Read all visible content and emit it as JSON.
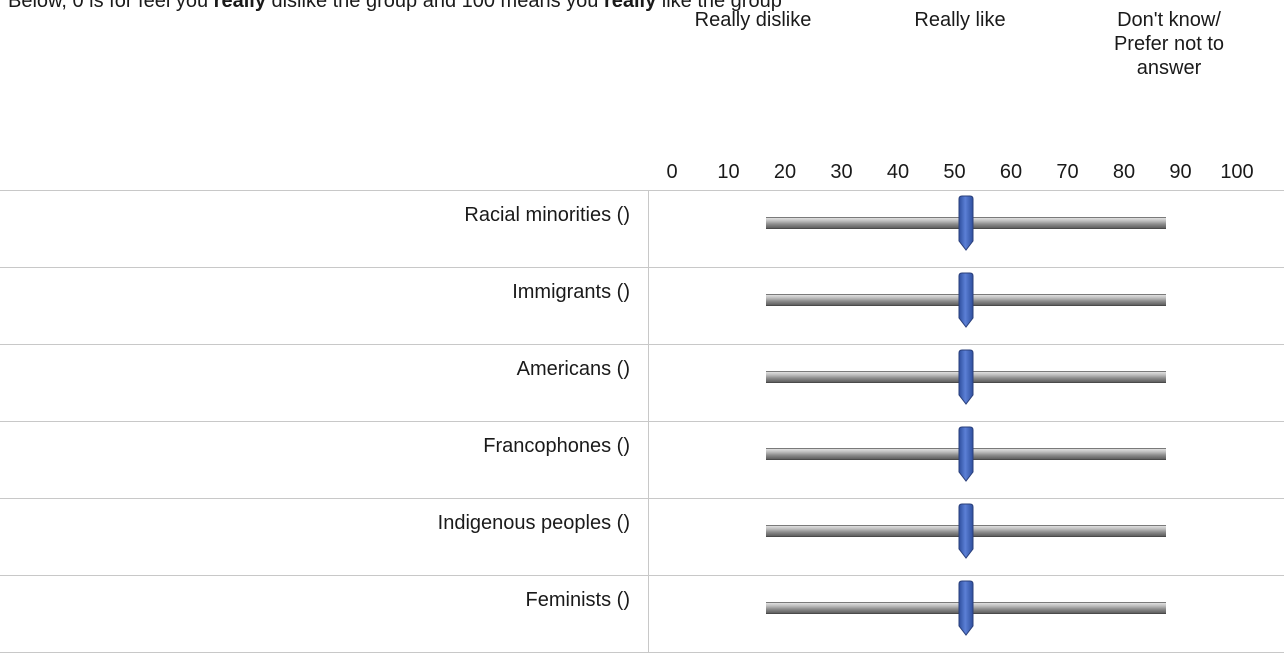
{
  "intro": {
    "prefix": "Below, 0 is for feel you ",
    "really1": "really",
    "mid": " dislike the group and 100 means you ",
    "really2": "really",
    "suffix": " like the group"
  },
  "anchors": {
    "dislike": "Really dislike",
    "like": "Really like",
    "dont_know_line1": "Don't know/",
    "dont_know_line2": "Prefer not to",
    "dont_know_line3": "answer"
  },
  "scale": {
    "ticks": [
      "0",
      "10",
      "20",
      "30",
      "40",
      "50",
      "60",
      "70",
      "80",
      "90",
      "100"
    ]
  },
  "rows": [
    {
      "label": "Racial minorities ()",
      "value": 50
    },
    {
      "label": "Immigrants ()",
      "value": 50
    },
    {
      "label": "Americans ()",
      "value": 50
    },
    {
      "label": "Francophones ()",
      "value": 50
    },
    {
      "label": "Indigenous peoples ()",
      "value": 50
    },
    {
      "label": "Feminists ()",
      "value": 50
    }
  ],
  "colors": {
    "handle": "#5b7fd6",
    "handle_dark": "#2e4f9e",
    "divider": "#c8c8c8"
  }
}
